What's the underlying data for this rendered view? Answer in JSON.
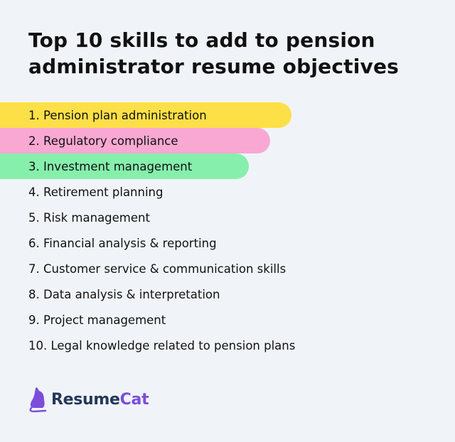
{
  "title_line1": "Top 10 skills to add to pension",
  "title_line2": "administrator resume objectives",
  "items": [
    {
      "label": "1. Pension plan administration",
      "highlight": "#fde047",
      "width_pct": 64
    },
    {
      "label": "2. Regulatory compliance",
      "highlight": "#f9a8d4",
      "width_pct": 59.4
    },
    {
      "label": "3. Investment management",
      "highlight": "#86efac",
      "width_pct": 54.7
    },
    {
      "label": "4. Retirement planning"
    },
    {
      "label": "5. Risk management"
    },
    {
      "label": "6. Financial analysis & reporting"
    },
    {
      "label": "7. Customer service & communication skills"
    },
    {
      "label": "8. Data analysis & interpretation"
    },
    {
      "label": "9. Project management"
    },
    {
      "label": "10. Legal knowledge related to pension plans"
    }
  ],
  "logo": {
    "part1": "Resume",
    "part2": "Cat",
    "color1": "#253858",
    "color2": "#7c4ddb",
    "icon": "cat-icon"
  }
}
